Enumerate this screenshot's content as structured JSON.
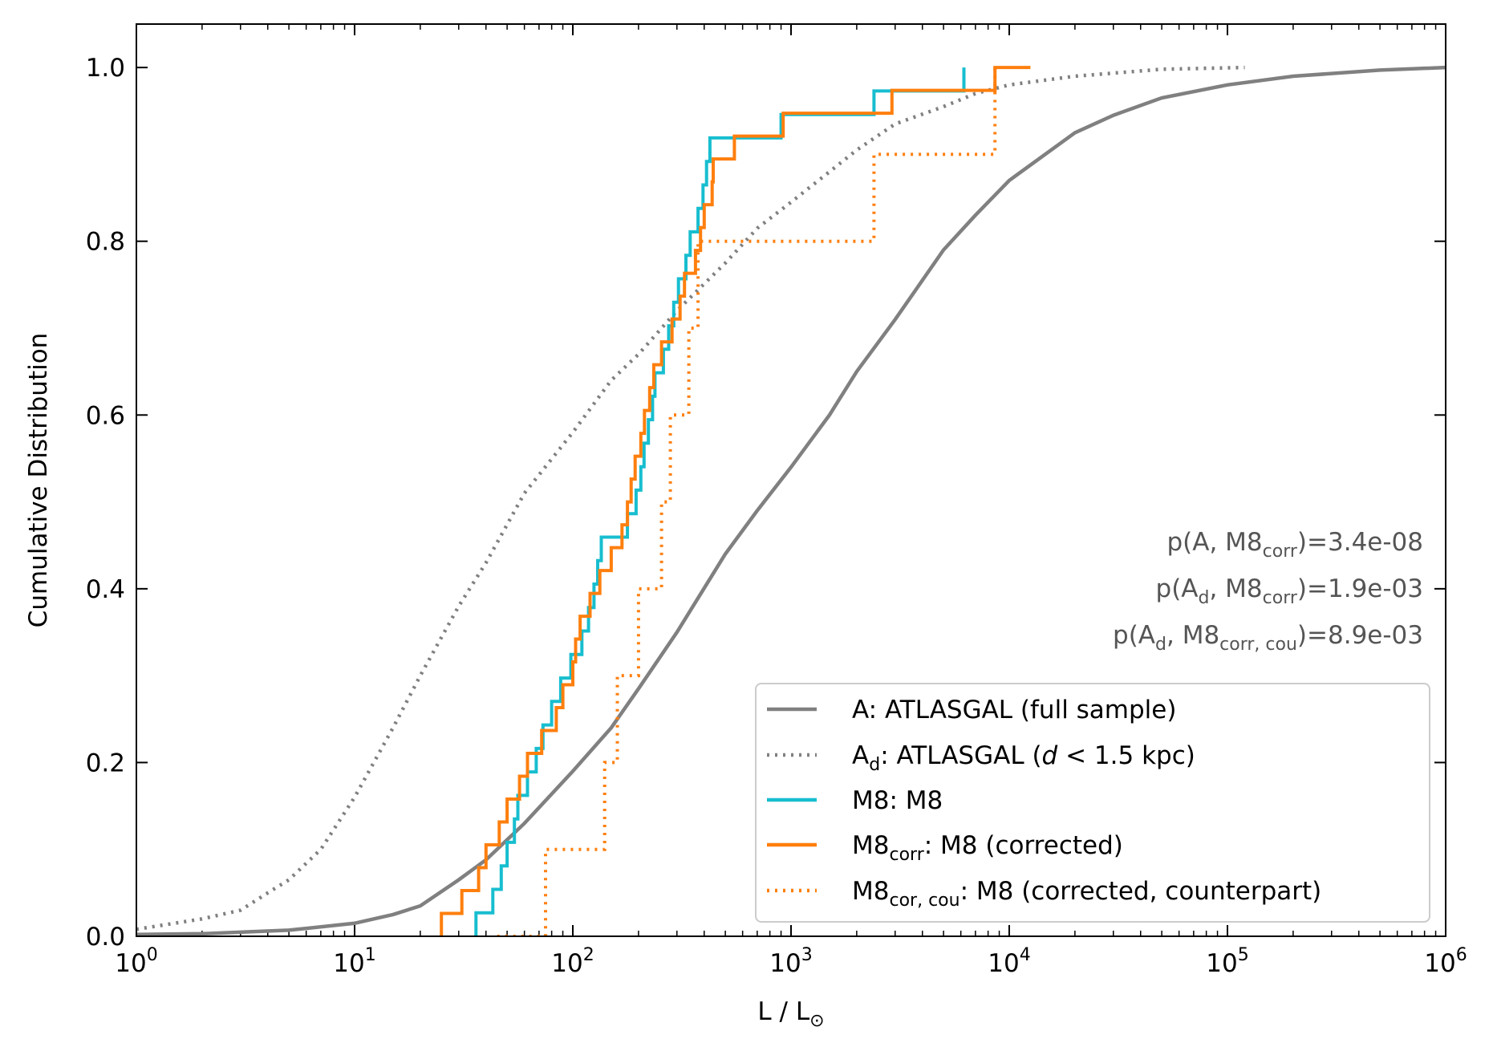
{
  "chart_data": {
    "type": "line",
    "subtype": "cumulative-distribution-step",
    "xscale": "log",
    "xlabel": "L / L",
    "xlabel_sub": "⊙",
    "ylabel": "Cumulative Distribution",
    "xlim": [
      1,
      1000000
    ],
    "ylim": [
      0,
      1.05
    ],
    "grid": false,
    "x_ticks": [
      {
        "value": 1,
        "base": "10",
        "exp": "0"
      },
      {
        "value": 10,
        "base": "10",
        "exp": "1"
      },
      {
        "value": 100,
        "base": "10",
        "exp": "2"
      },
      {
        "value": 1000,
        "base": "10",
        "exp": "3"
      },
      {
        "value": 10000,
        "base": "10",
        "exp": "4"
      },
      {
        "value": 100000,
        "base": "10",
        "exp": "5"
      },
      {
        "value": 1000000,
        "base": "10",
        "exp": "6"
      }
    ],
    "y_ticks": [
      {
        "value": 0.0,
        "label": "0.0"
      },
      {
        "value": 0.2,
        "label": "0.2"
      },
      {
        "value": 0.4,
        "label": "0.4"
      },
      {
        "value": 0.6,
        "label": "0.6"
      },
      {
        "value": 0.8,
        "label": "0.8"
      },
      {
        "value": 1.0,
        "label": "1.0"
      }
    ],
    "series": [
      {
        "key": "atlasgal_full",
        "legend_main": "A",
        "legend_sub": "",
        "legend_desc": ": ATLASGAL (full sample)",
        "color": "#808080",
        "style": "solid",
        "kind": "smooth",
        "points": [
          [
            1,
            0.002
          ],
          [
            2,
            0.003
          ],
          [
            5,
            0.007
          ],
          [
            10,
            0.015
          ],
          [
            15,
            0.025
          ],
          [
            20,
            0.035
          ],
          [
            30,
            0.065
          ],
          [
            40,
            0.088
          ],
          [
            60,
            0.13
          ],
          [
            100,
            0.19
          ],
          [
            150,
            0.24
          ],
          [
            200,
            0.285
          ],
          [
            300,
            0.35
          ],
          [
            500,
            0.44
          ],
          [
            700,
            0.49
          ],
          [
            1000,
            0.54
          ],
          [
            1500,
            0.6
          ],
          [
            2000,
            0.65
          ],
          [
            3000,
            0.71
          ],
          [
            5000,
            0.79
          ],
          [
            7000,
            0.83
          ],
          [
            10000,
            0.87
          ],
          [
            20000,
            0.925
          ],
          [
            30000,
            0.945
          ],
          [
            50000,
            0.965
          ],
          [
            100000,
            0.98
          ],
          [
            200000,
            0.99
          ],
          [
            500000,
            0.997
          ],
          [
            1000000,
            1.0
          ]
        ]
      },
      {
        "key": "atlasgal_d",
        "legend_main": "A",
        "legend_sub": "d",
        "legend_desc_pre": ": ATLASGAL (",
        "legend_desc_ital": "d",
        "legend_desc_post": " < 1.5 kpc)",
        "color": "#808080",
        "style": "dotted",
        "kind": "smooth",
        "points": [
          [
            1,
            0.008
          ],
          [
            2,
            0.02
          ],
          [
            3,
            0.03
          ],
          [
            4,
            0.05
          ],
          [
            5,
            0.065
          ],
          [
            7,
            0.1
          ],
          [
            10,
            0.16
          ],
          [
            15,
            0.24
          ],
          [
            20,
            0.3
          ],
          [
            30,
            0.38
          ],
          [
            40,
            0.43
          ],
          [
            60,
            0.51
          ],
          [
            100,
            0.58
          ],
          [
            150,
            0.64
          ],
          [
            200,
            0.67
          ],
          [
            300,
            0.72
          ],
          [
            500,
            0.775
          ],
          [
            700,
            0.815
          ],
          [
            1000,
            0.845
          ],
          [
            1500,
            0.88
          ],
          [
            2000,
            0.905
          ],
          [
            3000,
            0.935
          ],
          [
            5000,
            0.955
          ],
          [
            7000,
            0.97
          ],
          [
            10000,
            0.98
          ],
          [
            20000,
            0.99
          ],
          [
            50000,
            0.998
          ],
          [
            120000,
            1.0
          ]
        ]
      },
      {
        "key": "m8",
        "legend_main": "M8",
        "legend_sub": "",
        "legend_desc": ": M8",
        "color": "#17becf",
        "style": "solid",
        "kind": "step",
        "start_x": 36,
        "values": [
          36,
          43,
          47,
          50,
          54,
          56,
          62,
          68,
          73,
          80,
          88,
          98,
          110,
          118,
          125,
          130,
          135,
          178,
          195,
          205,
          212,
          222,
          232,
          238,
          260,
          275,
          290,
          305,
          330,
          345,
          375,
          395,
          410,
          425,
          900,
          2400,
          6200
        ]
      },
      {
        "key": "m8_corr",
        "legend_main": "M8",
        "legend_sub": "corr",
        "legend_desc": ": M8 (corrected)",
        "color": "#ff7f0e",
        "style": "solid",
        "kind": "step",
        "start_x": 25,
        "end_x": 12500,
        "values": [
          25,
          31,
          37,
          40,
          46,
          50,
          57,
          62,
          72,
          84,
          90,
          100,
          103,
          108,
          120,
          133,
          150,
          168,
          178,
          185,
          193,
          205,
          213,
          225,
          235,
          255,
          285,
          310,
          325,
          365,
          385,
          400,
          435,
          440,
          550,
          920,
          2900,
          8600
        ]
      },
      {
        "key": "m8_cor_cou",
        "legend_main": "M8",
        "legend_sub": "cor, cou",
        "legend_desc": ": M8 (corrected, counterpart)",
        "color": "#ff7f0e",
        "style": "dotted",
        "kind": "step",
        "start_x": 45,
        "values": [
          75,
          140,
          160,
          200,
          255,
          280,
          340,
          375,
          2400,
          8600
        ]
      }
    ],
    "annotations": [
      {
        "pre": "p(A, M8",
        "sub": "corr",
        "post": ")=3.4e-08"
      },
      {
        "pre": "p(A",
        "sub1": "d",
        "mid": ", M8",
        "sub": "corr",
        "post": ")=1.9e-03"
      },
      {
        "pre": "p(A",
        "sub1": "d",
        "mid": ", M8",
        "sub": "corr, cou",
        "post": ")=8.9e-03"
      }
    ],
    "legend_position": "lower-right"
  }
}
